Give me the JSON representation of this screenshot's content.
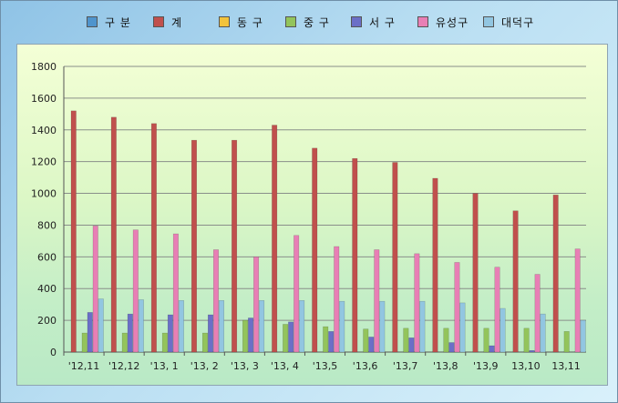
{
  "chart_data": {
    "type": "bar",
    "categories": [
      "'12,11",
      "'12,12",
      "'13, 1",
      "'13, 2",
      "'13, 3",
      "'13, 4",
      "'13,5",
      "'13,6",
      "'13,7",
      "'13,8",
      "'13,9",
      "13,10",
      "13,11"
    ],
    "series": [
      {
        "name": "계",
        "color": "#c0504d",
        "values": [
          1520,
          1480,
          1440,
          1335,
          1335,
          1430,
          1285,
          1220,
          1195,
          1095,
          1000,
          890,
          990
        ]
      },
      {
        "name": "동 구",
        "color": "#f2c33c",
        "values": [
          0,
          0,
          0,
          0,
          0,
          0,
          0,
          0,
          0,
          0,
          0,
          0,
          0
        ]
      },
      {
        "name": "중 구",
        "color": "#93c45b",
        "values": [
          120,
          120,
          120,
          120,
          200,
          175,
          160,
          145,
          150,
          150,
          150,
          150,
          130
        ]
      },
      {
        "name": "서 구",
        "color": "#6b6fc7",
        "values": [
          250,
          240,
          235,
          235,
          215,
          190,
          130,
          95,
          90,
          60,
          40,
          10,
          0
        ]
      },
      {
        "name": "유성구",
        "color": "#e87fb5",
        "values": [
          795,
          770,
          745,
          645,
          600,
          735,
          665,
          645,
          620,
          565,
          535,
          490,
          650
        ]
      },
      {
        "name": "대덕구",
        "color": "#92c6e1",
        "values": [
          335,
          330,
          325,
          325,
          325,
          325,
          320,
          320,
          320,
          310,
          275,
          240,
          200
        ]
      }
    ],
    "ylim": [
      0,
      1800
    ],
    "yticks": [
      0,
      200,
      400,
      600,
      800,
      1000,
      1200,
      1400,
      1600,
      1800
    ],
    "grid": true,
    "legend_position": "top"
  },
  "legend": {
    "items": [
      {
        "label": "구 분",
        "color": "#4f94cd"
      },
      {
        "label": "계",
        "color": "#c0504d"
      },
      {
        "label": "동 구",
        "color": "#f2c33c"
      },
      {
        "label": "중 구",
        "color": "#93c45b"
      },
      {
        "label": "서 구",
        "color": "#6b6fc7"
      },
      {
        "label": "유성구",
        "color": "#e87fb5"
      },
      {
        "label": "대덕구",
        "color": "#92c6e1"
      }
    ]
  }
}
